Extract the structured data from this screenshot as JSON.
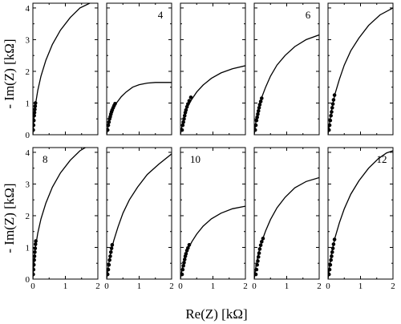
{
  "figure": {
    "xlabel": "Re(Z) [kΩ]",
    "ylabel": "- Im(Z) [kΩ]"
  },
  "chart_data": [
    {
      "type": "line",
      "title": "",
      "panel_label": "",
      "xlim": [
        0,
        2
      ],
      "ylim": [
        0,
        4.15
      ],
      "x_ticks": [
        "0",
        "1",
        "2"
      ],
      "y_ticks": [
        "0",
        "1",
        "2",
        "3",
        "4"
      ],
      "series": [
        {
          "kind": "curve",
          "x": [
            0.0,
            0.03,
            0.08,
            0.15,
            0.25,
            0.4,
            0.6,
            0.85,
            1.15,
            1.45,
            1.75
          ],
          "y": [
            0.0,
            0.5,
            0.95,
            1.4,
            1.85,
            2.35,
            2.85,
            3.3,
            3.7,
            4.0,
            4.15
          ]
        },
        {
          "kind": "points",
          "x": [
            0.01,
            0.02,
            0.03,
            0.04,
            0.05,
            0.06,
            0.07,
            0.08
          ],
          "y": [
            0.15,
            0.3,
            0.45,
            0.6,
            0.7,
            0.8,
            0.9,
            1.0
          ]
        }
      ]
    },
    {
      "type": "line",
      "title": "",
      "panel_label": "4",
      "xlim": [
        0,
        2
      ],
      "ylim": [
        0,
        4.15
      ],
      "x_ticks": [
        "0",
        "1",
        "2"
      ],
      "y_ticks": [
        "0",
        "1",
        "2",
        "3",
        "4"
      ],
      "series": [
        {
          "kind": "curve",
          "x": [
            0.0,
            0.05,
            0.12,
            0.2,
            0.3,
            0.45,
            0.6,
            0.8,
            1.0,
            1.25,
            1.5,
            2.0
          ],
          "y": [
            0.0,
            0.3,
            0.6,
            0.82,
            1.0,
            1.2,
            1.35,
            1.5,
            1.58,
            1.63,
            1.65,
            1.65
          ]
        },
        {
          "kind": "points",
          "x": [
            0.03,
            0.05,
            0.07,
            0.09,
            0.11,
            0.13,
            0.15,
            0.17,
            0.2,
            0.23,
            0.26
          ],
          "y": [
            0.15,
            0.3,
            0.4,
            0.5,
            0.57,
            0.65,
            0.72,
            0.78,
            0.85,
            0.92,
            0.98
          ]
        }
      ]
    },
    {
      "type": "line",
      "title": "",
      "panel_label": "",
      "xlim": [
        0,
        2
      ],
      "ylim": [
        0,
        4.15
      ],
      "x_ticks": [
        "0",
        "1",
        "2"
      ],
      "y_ticks": [
        "0",
        "1",
        "2",
        "3",
        "4"
      ],
      "series": [
        {
          "kind": "curve",
          "x": [
            0.0,
            0.05,
            0.12,
            0.22,
            0.35,
            0.5,
            0.7,
            0.95,
            1.25,
            1.6,
            2.0
          ],
          "y": [
            0.0,
            0.3,
            0.6,
            0.88,
            1.12,
            1.35,
            1.57,
            1.78,
            1.95,
            2.08,
            2.18
          ]
        },
        {
          "kind": "points",
          "x": [
            0.05,
            0.07,
            0.09,
            0.11,
            0.13,
            0.15,
            0.17,
            0.2,
            0.23,
            0.27,
            0.32
          ],
          "y": [
            0.15,
            0.3,
            0.4,
            0.5,
            0.6,
            0.7,
            0.78,
            0.88,
            0.97,
            1.07,
            1.18
          ]
        }
      ]
    },
    {
      "type": "line",
      "title": "",
      "panel_label": "6",
      "xlim": [
        0,
        2
      ],
      "ylim": [
        0,
        4.15
      ],
      "x_ticks": [
        "0",
        "1",
        "2"
      ],
      "y_ticks": [
        "0",
        "1",
        "2",
        "3",
        "4"
      ],
      "series": [
        {
          "kind": "curve",
          "x": [
            0.0,
            0.05,
            0.12,
            0.22,
            0.35,
            0.5,
            0.7,
            0.95,
            1.25,
            1.6,
            2.0
          ],
          "y": [
            0.0,
            0.4,
            0.8,
            1.15,
            1.5,
            1.85,
            2.2,
            2.5,
            2.78,
            3.0,
            3.15
          ]
        },
        {
          "kind": "points",
          "x": [
            0.03,
            0.05,
            0.07,
            0.09,
            0.11,
            0.13,
            0.15,
            0.17,
            0.2,
            0.23
          ],
          "y": [
            0.15,
            0.3,
            0.45,
            0.55,
            0.65,
            0.75,
            0.85,
            0.95,
            1.05,
            1.15
          ]
        }
      ]
    },
    {
      "type": "line",
      "title": "",
      "panel_label": "",
      "xlim": [
        0,
        2
      ],
      "ylim": [
        0,
        4.15
      ],
      "x_ticks": [
        "0",
        "1",
        "2"
      ],
      "y_ticks": [
        "0",
        "1",
        "2",
        "3",
        "4"
      ],
      "series": [
        {
          "kind": "curve",
          "x": [
            0.0,
            0.05,
            0.12,
            0.22,
            0.35,
            0.5,
            0.7,
            0.95,
            1.25,
            1.6,
            2.0
          ],
          "y": [
            0.0,
            0.4,
            0.85,
            1.3,
            1.75,
            2.2,
            2.65,
            3.05,
            3.45,
            3.78,
            4.0
          ]
        },
        {
          "kind": "points",
          "x": [
            0.03,
            0.05,
            0.07,
            0.09,
            0.11,
            0.13,
            0.15,
            0.17,
            0.2
          ],
          "y": [
            0.15,
            0.3,
            0.45,
            0.6,
            0.72,
            0.85,
            0.97,
            1.1,
            1.25
          ]
        }
      ]
    },
    {
      "type": "line",
      "title": "",
      "panel_label": "8",
      "xlim": [
        0,
        2
      ],
      "ylim": [
        0,
        4.15
      ],
      "x_ticks": [
        "0",
        "1",
        "2"
      ],
      "y_ticks": [
        "0",
        "1",
        "2",
        "3",
        "4"
      ],
      "series": [
        {
          "kind": "curve",
          "x": [
            0.0,
            0.03,
            0.08,
            0.15,
            0.25,
            0.4,
            0.6,
            0.85,
            1.15,
            1.45,
            1.7
          ],
          "y": [
            0.0,
            0.5,
            1.0,
            1.45,
            1.9,
            2.4,
            2.9,
            3.35,
            3.75,
            4.05,
            4.2
          ]
        },
        {
          "kind": "points",
          "x": [
            0.01,
            0.02,
            0.03,
            0.04,
            0.05,
            0.06,
            0.07,
            0.08,
            0.09
          ],
          "y": [
            0.15,
            0.3,
            0.45,
            0.6,
            0.72,
            0.85,
            0.97,
            1.1,
            1.2
          ]
        }
      ]
    },
    {
      "type": "line",
      "title": "",
      "panel_label": "",
      "xlim": [
        0,
        2
      ],
      "ylim": [
        0,
        4.15
      ],
      "x_ticks": [
        "0",
        "1",
        "2"
      ],
      "y_ticks": [
        "0",
        "1",
        "2",
        "3",
        "4"
      ],
      "series": [
        {
          "kind": "curve",
          "x": [
            0.0,
            0.05,
            0.12,
            0.22,
            0.35,
            0.5,
            0.7,
            0.95,
            1.25,
            1.6,
            2.0
          ],
          "y": [
            0.0,
            0.4,
            0.82,
            1.22,
            1.65,
            2.08,
            2.5,
            2.9,
            3.3,
            3.62,
            3.95
          ]
        },
        {
          "kind": "points",
          "x": [
            0.03,
            0.05,
            0.07,
            0.09,
            0.11,
            0.13,
            0.15,
            0.17
          ],
          "y": [
            0.15,
            0.3,
            0.45,
            0.6,
            0.72,
            0.85,
            0.97,
            1.08
          ]
        }
      ]
    },
    {
      "type": "line",
      "title": "",
      "panel_label": "10",
      "xlim": [
        0,
        2
      ],
      "ylim": [
        0,
        4.15
      ],
      "x_ticks": [
        "0",
        "1",
        "2"
      ],
      "y_ticks": [
        "0",
        "1",
        "2",
        "3",
        "4"
      ],
      "series": [
        {
          "kind": "curve",
          "x": [
            0.0,
            0.05,
            0.12,
            0.22,
            0.35,
            0.5,
            0.7,
            0.95,
            1.25,
            1.6,
            2.0
          ],
          "y": [
            0.0,
            0.32,
            0.62,
            0.92,
            1.18,
            1.42,
            1.67,
            1.9,
            2.08,
            2.22,
            2.3
          ]
        },
        {
          "kind": "points",
          "x": [
            0.05,
            0.07,
            0.09,
            0.11,
            0.13,
            0.15,
            0.17,
            0.2,
            0.23,
            0.27
          ],
          "y": [
            0.15,
            0.3,
            0.42,
            0.52,
            0.62,
            0.72,
            0.8,
            0.9,
            0.98,
            1.08
          ]
        }
      ]
    },
    {
      "type": "line",
      "title": "",
      "panel_label": "",
      "xlim": [
        0,
        2
      ],
      "ylim": [
        0,
        4.15
      ],
      "x_ticks": [
        "0",
        "1",
        "2"
      ],
      "y_ticks": [
        "0",
        "1",
        "2",
        "3",
        "4"
      ],
      "series": [
        {
          "kind": "curve",
          "x": [
            0.0,
            0.05,
            0.12,
            0.22,
            0.35,
            0.5,
            0.7,
            0.95,
            1.25,
            1.6,
            2.0
          ],
          "y": [
            0.0,
            0.38,
            0.78,
            1.15,
            1.52,
            1.88,
            2.25,
            2.58,
            2.88,
            3.08,
            3.2
          ]
        },
        {
          "kind": "points",
          "x": [
            0.05,
            0.07,
            0.09,
            0.11,
            0.13,
            0.15,
            0.17,
            0.2,
            0.23,
            0.27
          ],
          "y": [
            0.15,
            0.3,
            0.45,
            0.57,
            0.7,
            0.82,
            0.95,
            1.07,
            1.18,
            1.28
          ]
        }
      ]
    },
    {
      "type": "line",
      "title": "",
      "panel_label": "12",
      "xlim": [
        0,
        2
      ],
      "ylim": [
        0,
        4.15
      ],
      "x_ticks": [
        "0",
        "1",
        "2"
      ],
      "y_ticks": [
        "0",
        "1",
        "2",
        "3",
        "4"
      ],
      "series": [
        {
          "kind": "curve",
          "x": [
            0.0,
            0.05,
            0.12,
            0.22,
            0.35,
            0.5,
            0.7,
            0.95,
            1.25,
            1.55,
            1.8,
            2.0
          ],
          "y": [
            0.0,
            0.42,
            0.88,
            1.32,
            1.78,
            2.22,
            2.68,
            3.1,
            3.5,
            3.8,
            3.98,
            4.05
          ]
        },
        {
          "kind": "points",
          "x": [
            0.03,
            0.05,
            0.07,
            0.09,
            0.11,
            0.13,
            0.15,
            0.17,
            0.2
          ],
          "y": [
            0.15,
            0.3,
            0.45,
            0.6,
            0.72,
            0.85,
            0.97,
            1.1,
            1.25
          ]
        }
      ]
    }
  ]
}
